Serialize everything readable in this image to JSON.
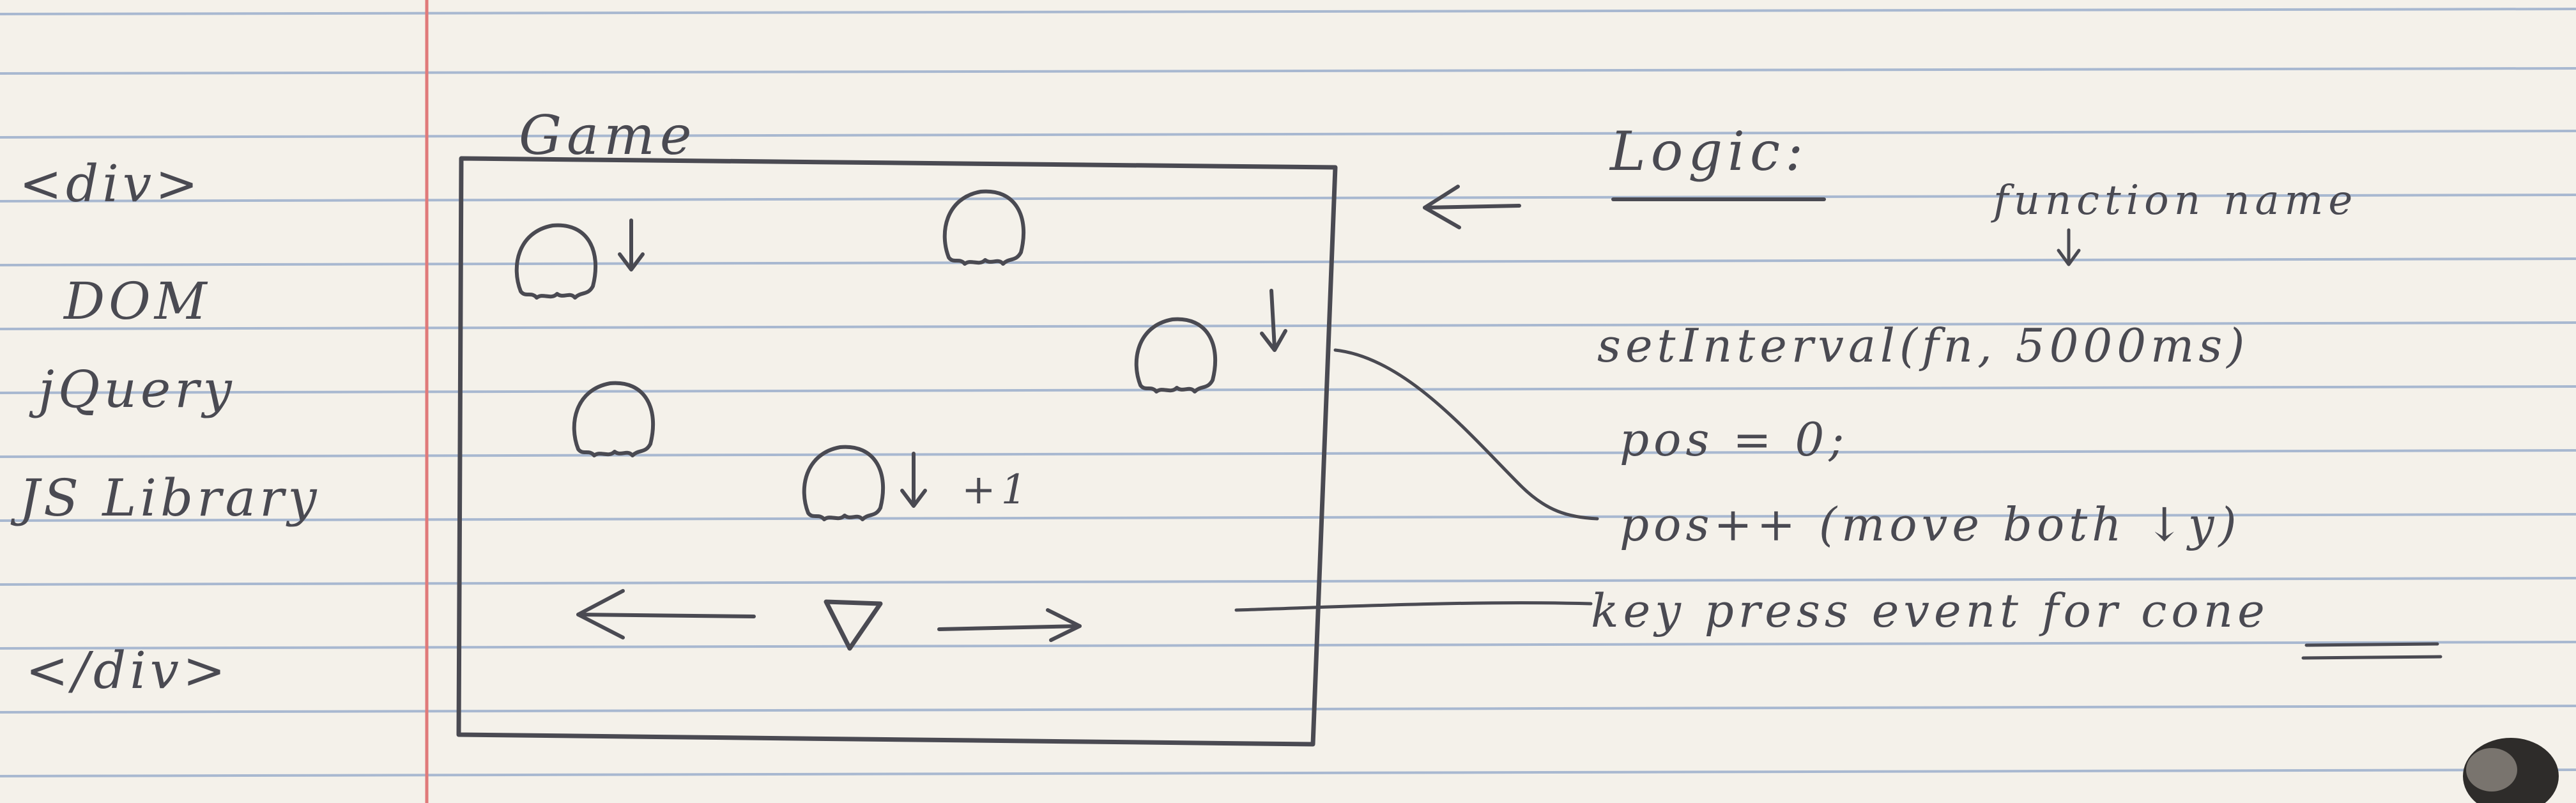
{
  "notes": {
    "html_tags": {
      "open": "<div>",
      "close": "</div>"
    },
    "side_labels": [
      "DOM",
      "jQuery",
      "JS Library"
    ],
    "game_box": {
      "title": "Game",
      "score_label": "+1",
      "enemy_icon": "blob-enemy-icon",
      "player_icon": "triangle-cone-icon"
    },
    "logic": {
      "heading": "Logic:",
      "function_name_label": "function name",
      "set_interval_call": "setInterval(fn, 5000ms)",
      "pos_init": "pos = 0;",
      "pos_increment": "pos++ (move both ↓y)",
      "key_press": "key press event for cone"
    }
  },
  "colors": {
    "paper": "#f4f1ea",
    "rule_line": "#8fa6c8",
    "margin_line": "#e07a7a",
    "ink": "#4a4a52"
  }
}
